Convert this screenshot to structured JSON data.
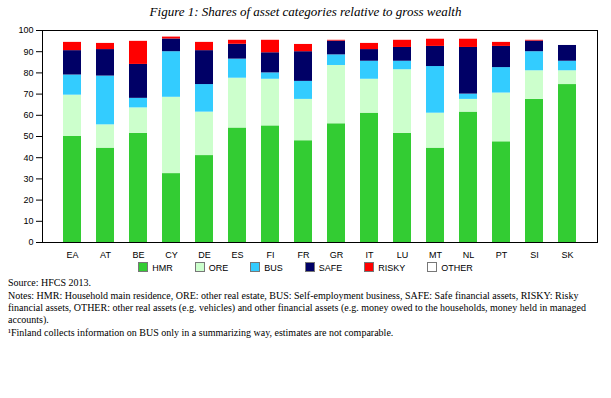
{
  "chart_data": {
    "type": "bar",
    "title": "Figure 1: Shares of asset categories relative to gross wealth",
    "categories": [
      "EA",
      "AT",
      "BE",
      "CY",
      "DE",
      "ES",
      "FI",
      "FR",
      "GR",
      "IT",
      "LU",
      "MT",
      "NL",
      "PT",
      "SI",
      "SK"
    ],
    "series": [
      {
        "name": "HMR",
        "color": "#33cc33",
        "values": [
          50,
          44.5,
          51.5,
          32.5,
          41,
          54,
          55,
          48,
          56,
          61,
          51.5,
          44.5,
          61.5,
          47.5,
          67.5,
          74.5
        ]
      },
      {
        "name": "ORE",
        "color": "#ccffcc",
        "values": [
          19.5,
          11,
          12,
          36,
          20.5,
          23.5,
          22,
          19.5,
          27.5,
          16,
          30,
          16.5,
          6,
          23,
          13.5,
          6.5
        ]
      },
      {
        "name": "BUS",
        "color": "#33ccff",
        "values": [
          9.5,
          23,
          4.5,
          21.5,
          13,
          9,
          3,
          8.5,
          5,
          8.5,
          4,
          22,
          2.5,
          12,
          9,
          4.5
        ]
      },
      {
        "name": "SAFE",
        "color": "#000066",
        "values": [
          11.5,
          12.5,
          16,
          6,
          16,
          7,
          9.5,
          14,
          6.5,
          5.5,
          6.5,
          9.5,
          22,
          10,
          5,
          7.5
        ]
      },
      {
        "name": "RISKY",
        "color": "#ff0000",
        "values": [
          4,
          3,
          11,
          1,
          4,
          2,
          6,
          3.5,
          0.5,
          3,
          3.5,
          3.5,
          4,
          2,
          0.5,
          0
        ]
      },
      {
        "name": "OTHER",
        "color": "#ffffff",
        "values": [
          5.5,
          6,
          5,
          3,
          5.5,
          4.5,
          4.5,
          6.5,
          4.5,
          6,
          4.5,
          4,
          4,
          5.5,
          4.5,
          7
        ]
      }
    ],
    "ylim": [
      0,
      100
    ],
    "yticks": [
      0,
      10,
      20,
      30,
      40,
      50,
      60,
      70,
      80,
      90,
      100
    ],
    "grid": false,
    "stacked": true,
    "legend": "bottom",
    "annotations": [
      "Source: HFCS 2013.",
      "Notes: HMR: Household main residence, ORE: other real estate, BUS: Self-employment business, SAFE: Safe financial assets, RISKY: Risky financial assets, OTHER: other real assets (e.g. vehicles) and other financial assets (e.g. money owed to the households, money held in managed accounts).",
      "¹Finland collects information on BUS only in a summarizing way, estimates are not comparable."
    ]
  }
}
